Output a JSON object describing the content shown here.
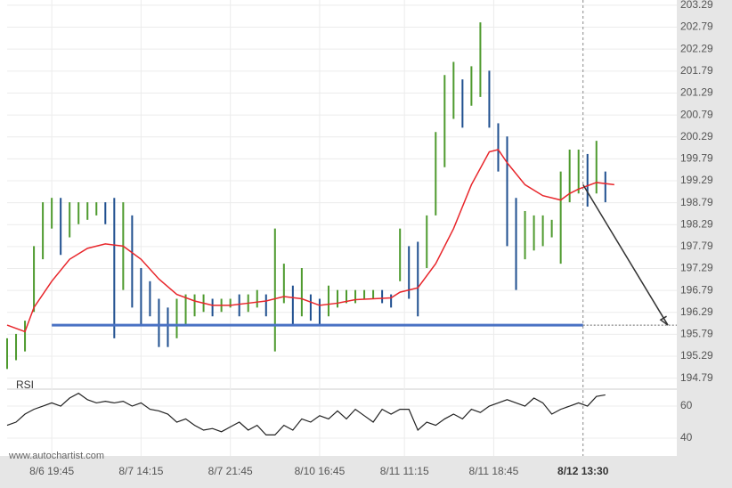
{
  "chart_data": {
    "type": "ohlc",
    "xlim": [
      0,
      150
    ],
    "xticks": [
      {
        "value": 10,
        "label": "8/6 19:45"
      },
      {
        "value": 30,
        "label": "8/7 14:15"
      },
      {
        "value": 50,
        "label": "8/7 21:45"
      },
      {
        "value": 70,
        "label": "8/10 16:45"
      },
      {
        "value": 89,
        "label": "8/11 11:15"
      },
      {
        "value": 109,
        "label": "8/11 18:45"
      },
      {
        "value": 129,
        "label": "8/12 13:30"
      }
    ],
    "ylim": [
      194.54,
      203.41
    ],
    "yticks": [
      194.79,
      195.29,
      195.79,
      196.29,
      196.79,
      197.29,
      197.79,
      198.29,
      198.79,
      199.29,
      199.79,
      200.29,
      200.79,
      201.29,
      201.79,
      202.29,
      202.79,
      203.29
    ],
    "grid": true,
    "up_color": "#4e9a2e",
    "down_color": "#1f4f8f",
    "bars": {
      "x": [
        0,
        2,
        4,
        6,
        8,
        10,
        12,
        14,
        16,
        18,
        20,
        22,
        24,
        26,
        28,
        30,
        32,
        34,
        36,
        38,
        40,
        42,
        44,
        46,
        48,
        50,
        52,
        54,
        56,
        58,
        60,
        62,
        64,
        66,
        68,
        70,
        72,
        74,
        76,
        78,
        80,
        82,
        84,
        86,
        88,
        90,
        92,
        94,
        96,
        98,
        100,
        102,
        104,
        106,
        108,
        110,
        112,
        114,
        116,
        118,
        120,
        122,
        124,
        126,
        128,
        130,
        132,
        134
      ],
      "low": [
        195.0,
        195.2,
        195.4,
        196.3,
        197.5,
        198.2,
        197.6,
        198.0,
        198.3,
        198.4,
        198.5,
        198.3,
        195.7,
        196.8,
        196.4,
        196.0,
        196.2,
        195.5,
        195.5,
        195.7,
        196.0,
        196.2,
        196.3,
        196.2,
        196.3,
        196.4,
        196.2,
        196.3,
        196.4,
        196.2,
        195.4,
        196.5,
        196.0,
        196.2,
        196.1,
        196.0,
        196.2,
        196.4,
        196.5,
        196.5,
        196.6,
        196.6,
        196.5,
        196.4,
        197.0,
        196.6,
        196.2,
        197.3,
        198.5,
        199.6,
        200.7,
        200.5,
        201.0,
        201.2,
        200.5,
        199.5,
        197.8,
        196.8,
        197.5,
        197.7,
        197.8,
        198.0,
        197.4,
        198.8,
        199.0,
        198.7,
        199.0,
        198.8
      ],
      "high": [
        195.7,
        195.8,
        196.1,
        197.8,
        198.8,
        198.9,
        198.9,
        198.8,
        198.8,
        198.8,
        198.8,
        198.8,
        198.9,
        198.8,
        198.5,
        197.3,
        197.0,
        196.6,
        196.4,
        196.6,
        196.7,
        196.7,
        196.7,
        196.6,
        196.6,
        196.6,
        196.7,
        196.7,
        196.8,
        196.7,
        198.2,
        197.4,
        196.9,
        197.3,
        196.7,
        196.6,
        196.9,
        196.8,
        196.8,
        196.8,
        196.8,
        196.8,
        196.8,
        196.7,
        198.2,
        197.8,
        197.9,
        198.5,
        200.4,
        201.7,
        202.0,
        201.6,
        201.9,
        202.9,
        201.8,
        200.6,
        200.3,
        198.9,
        198.6,
        198.5,
        198.5,
        198.4,
        199.5,
        200.0,
        200.0,
        199.9,
        200.2,
        199.5
      ]
    },
    "moving_average": {
      "color": "#e8262b",
      "x": [
        0,
        4,
        6,
        10,
        14,
        18,
        22,
        26,
        30,
        34,
        38,
        42,
        46,
        50,
        54,
        58,
        62,
        66,
        70,
        74,
        78,
        82,
        86,
        88,
        92,
        96,
        100,
        104,
        108,
        110,
        112,
        116,
        120,
        124,
        126,
        128,
        132,
        136
      ],
      "values": [
        196.0,
        195.85,
        196.4,
        197.0,
        197.5,
        197.75,
        197.85,
        197.8,
        197.5,
        197.05,
        196.7,
        196.55,
        196.45,
        196.45,
        196.5,
        196.55,
        196.65,
        196.6,
        196.45,
        196.5,
        196.58,
        196.6,
        196.62,
        196.75,
        196.85,
        197.4,
        198.2,
        199.2,
        199.95,
        200.0,
        199.7,
        199.2,
        198.95,
        198.85,
        199.0,
        199.1,
        199.25,
        199.2
      ]
    },
    "support": {
      "color": "#4a72c4",
      "x": [
        10,
        129
      ],
      "value": 196.0
    },
    "forecast": {
      "x": [
        129,
        148
      ],
      "values": [
        199.2,
        196.0
      ]
    },
    "rsi": {
      "label": "RSI",
      "ylim": [
        30,
        68.9
      ],
      "yticks": [
        40,
        60
      ],
      "x": [
        0,
        2,
        4,
        6,
        8,
        10,
        12,
        14,
        16,
        18,
        20,
        22,
        24,
        26,
        28,
        30,
        32,
        34,
        36,
        38,
        40,
        42,
        44,
        46,
        48,
        50,
        52,
        54,
        56,
        58,
        60,
        62,
        64,
        66,
        68,
        70,
        72,
        74,
        76,
        78,
        80,
        82,
        84,
        86,
        88,
        90,
        92,
        94,
        96,
        98,
        100,
        102,
        104,
        106,
        108,
        110,
        112,
        114,
        116,
        118,
        120,
        122,
        124,
        126,
        128,
        130,
        132,
        134
      ],
      "values": [
        48,
        50,
        55,
        58,
        60,
        62,
        60,
        65,
        68,
        64,
        62,
        63,
        62,
        63,
        60,
        62,
        58,
        57,
        55,
        50,
        52,
        48,
        45,
        46,
        44,
        47,
        50,
        45,
        48,
        42,
        42,
        48,
        45,
        52,
        50,
        54,
        52,
        57,
        52,
        58,
        54,
        50,
        58,
        55,
        58,
        58,
        45,
        50,
        48,
        52,
        55,
        52,
        58,
        56,
        60,
        62,
        64,
        62,
        60,
        65,
        62,
        55,
        58,
        60,
        62,
        60,
        66,
        67
      ]
    },
    "watermark": "www.autochartist.com"
  }
}
